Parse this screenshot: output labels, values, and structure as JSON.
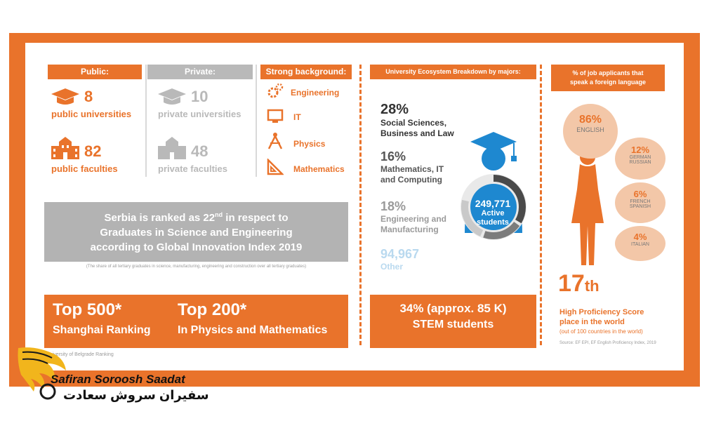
{
  "public": {
    "header": "Public:",
    "universities_count": "8",
    "universities_label": "public universities",
    "faculties_count": "82",
    "faculties_label": "public faculties"
  },
  "private": {
    "header": "Private:",
    "universities_count": "10",
    "universities_label": "private universities",
    "faculties_count": "48",
    "faculties_label": "private faculties"
  },
  "background": {
    "header": "Strong background:",
    "items": [
      {
        "label": "Engineering",
        "icon": "gears-icon"
      },
      {
        "label": "IT",
        "icon": "monitor-icon"
      },
      {
        "label": "Physics",
        "icon": "compass-icon"
      },
      {
        "label": "Mathematics",
        "icon": "ruler-triangle-icon"
      }
    ]
  },
  "ranking": {
    "line1_pre": "Serbia is ranked as 22",
    "line1_sup": "nd",
    "line1_post": " in respect to",
    "line2": "Graduates in Science and Engineering",
    "line3": "according to Global Innovation Index 2019",
    "note": "(The share of all tertiary graduates in science, manufacturing, engineering and construction over all tertiary graduates)"
  },
  "top": {
    "a_title": "Top 500*",
    "a_sub": "Shanghai Ranking",
    "b_title": "Top 200*",
    "b_sub": "In Physics and Mathematics",
    "footnote": "*University of Belgrade Ranking"
  },
  "ecosystem": {
    "header": "University Ecosystem Breakdown by majors:",
    "items": [
      {
        "pct": "28%",
        "label1": "Social Sciences,",
        "label2": "Business and Law"
      },
      {
        "pct": "16%",
        "label1": "Mathematics, IT",
        "label2": "and Computing"
      },
      {
        "pct": "18%",
        "label1": "Engineering and",
        "label2": "Manufacturing"
      },
      {
        "pct": "94,967",
        "label1": "Other",
        "label2": ""
      }
    ],
    "students_count": "249,771",
    "students_label1": "Active",
    "students_label2": "students",
    "stem_line1": "34% (approx. 85 K)",
    "stem_line2": "STEM students"
  },
  "languages": {
    "header1": "% of job applicants that",
    "header2": "speak a foreign language",
    "bubbles": [
      {
        "pct": "86%",
        "lang1": "ENGLISH",
        "lang2": ""
      },
      {
        "pct": "12%",
        "lang1": "GERMAN",
        "lang2": "RUSSIAN"
      },
      {
        "pct": "6%",
        "lang1": "FRENCH",
        "lang2": "SPANISH"
      },
      {
        "pct": "4%",
        "lang1": "ITALIAN",
        "lang2": ""
      }
    ],
    "rank_num": "17",
    "rank_sup": "th",
    "rank_line1": "High Proficiency Score",
    "rank_line2": "place in the world",
    "rank_note": "(out of 100 countries in the world)",
    "source": "Source: EF EPI, EF English Proficiency Index, 2019"
  },
  "logo": {
    "name_en": "Safiran Soroosh Saadat",
    "name_fa": "سفیران سروش سعادت"
  },
  "colors": {
    "orange": "#e9732b",
    "grey": "#b9b9b9",
    "blue": "#1e88d0",
    "dark": "#333333"
  }
}
